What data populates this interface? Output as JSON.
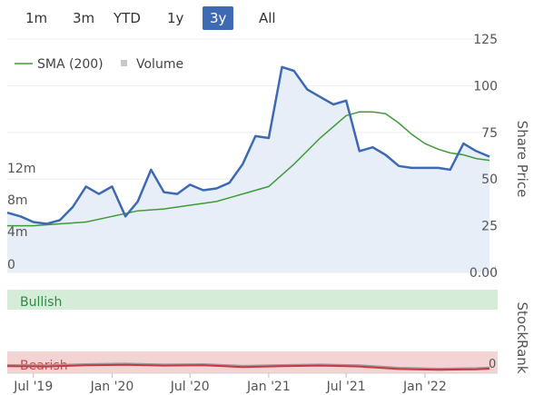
{
  "range_buttons": [
    "1m",
    "3m",
    "YTD",
    "1y",
    "3y",
    "All"
  ],
  "active_range": "3y",
  "legend": {
    "sma_label": "SMA (200)",
    "volume_label": "Volume"
  },
  "colors": {
    "price": "#3d6ab3",
    "price_fill": "#e8eef8",
    "sma": "#3f9b3a",
    "volume": "#c8c8c8",
    "bullish_band": "#d5ecd9",
    "bullish_text": "#2f8a45",
    "bearish_band": "#f4d3d5",
    "bearish_text": "#c8484f",
    "stockrank": "#c8393f",
    "stockrank_high": "#9a9a9a",
    "active_button": "#3d6ab3"
  },
  "bands": {
    "bullish": "Bullish",
    "bearish": "Bearish"
  },
  "chart_data": {
    "type": "line",
    "x_labels": [
      "Jul '19",
      "Jan '20",
      "Jul '20",
      "Jan '21",
      "Jul '21",
      "Jan '22"
    ],
    "right_axis_title": "Share Price",
    "right_ticks": [
      "125",
      "100",
      "75",
      "50",
      "25",
      "0.00"
    ],
    "left_ticks": [
      "12m",
      "8m",
      "4m",
      "0"
    ],
    "ylim": [
      0,
      125
    ],
    "series": [
      {
        "name": "Share Price",
        "x": [
          "2019-05",
          "2019-06",
          "2019-07",
          "2019-08",
          "2019-09",
          "2019-10",
          "2019-11",
          "2019-12",
          "2020-01",
          "2020-02",
          "2020-03",
          "2020-04",
          "2020-05",
          "2020-06",
          "2020-07",
          "2020-08",
          "2020-09",
          "2020-10",
          "2020-11",
          "2020-12",
          "2021-01",
          "2021-02",
          "2021-03",
          "2021-04",
          "2021-05",
          "2021-06",
          "2021-07",
          "2021-08",
          "2021-09",
          "2021-10",
          "2021-11",
          "2021-12",
          "2022-01",
          "2022-02",
          "2022-03",
          "2022-04",
          "2022-05",
          "2022-06"
        ],
        "values": [
          32,
          30,
          27,
          26,
          28,
          35,
          46,
          42,
          46,
          30,
          38,
          55,
          43,
          42,
          47,
          44,
          45,
          48,
          58,
          73,
          72,
          110,
          108,
          98,
          94,
          90,
          92,
          65,
          67,
          63,
          57,
          56,
          56,
          56,
          55,
          69,
          65,
          62
        ]
      },
      {
        "name": "SMA (200)",
        "x": [
          "2019-05",
          "2019-07",
          "2019-09",
          "2019-11",
          "2020-01",
          "2020-03",
          "2020-05",
          "2020-07",
          "2020-09",
          "2020-11",
          "2021-01",
          "2021-03",
          "2021-05",
          "2021-07",
          "2021-08",
          "2021-09",
          "2021-10",
          "2021-11",
          "2021-12",
          "2022-01",
          "2022-02",
          "2022-03",
          "2022-04",
          "2022-05",
          "2022-06"
        ],
        "values": [
          25,
          25,
          26,
          27,
          30,
          33,
          34,
          36,
          38,
          42,
          46,
          58,
          72,
          84,
          86,
          86,
          85,
          80,
          74,
          69,
          66,
          64,
          63,
          61,
          60
        ]
      }
    ],
    "volume_spikes": [
      {
        "x": "2022-04",
        "value": 9
      }
    ],
    "stockrank": {
      "title": "StockRank",
      "zero_label": "0",
      "x": [
        "2019-05",
        "2019-08",
        "2019-11",
        "2020-02",
        "2020-05",
        "2020-08",
        "2020-11",
        "2021-02",
        "2021-05",
        "2021-08",
        "2021-11",
        "2022-02",
        "2022-05",
        "2022-06"
      ],
      "values": [
        25,
        24,
        28,
        30,
        27,
        28,
        22,
        25,
        27,
        24,
        15,
        12,
        14,
        16
      ],
      "ylim": [
        0,
        100
      ]
    }
  }
}
